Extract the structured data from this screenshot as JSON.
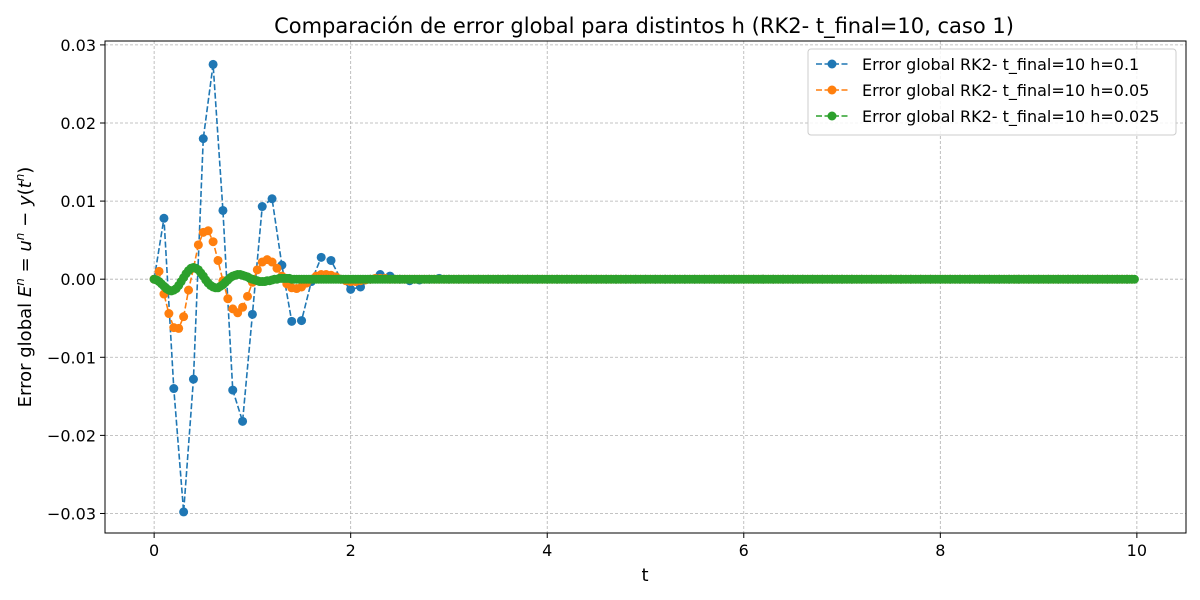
{
  "chart_data": {
    "type": "line",
    "title": "Comparación de error global para distintos h (RK2- t_final=10, caso 1)",
    "xlabel": "t",
    "ylabel": "Error global E^n = u^n − y(t^n)",
    "ylabel_parts": {
      "prefix": "Error global ",
      "E": "E",
      "n1": "n",
      "eq": " = ",
      "u": "u",
      "n2": "n",
      "minus": " − ",
      "y": "y",
      "open": "(",
      "t": "t",
      "n3": "n",
      "close": ")"
    },
    "xlim": [
      -0.5,
      10.5
    ],
    "ylim": [
      -0.0325,
      0.0305
    ],
    "xticks": [
      0,
      2,
      4,
      6,
      8,
      10
    ],
    "xtick_labels": [
      "0",
      "2",
      "4",
      "6",
      "8",
      "10"
    ],
    "yticks": [
      -0.03,
      -0.02,
      -0.01,
      0.0,
      0.01,
      0.02,
      0.03
    ],
    "ytick_labels": [
      "−0.03",
      "−0.02",
      "−0.01",
      "0.00",
      "0.01",
      "0.02",
      "0.03"
    ],
    "grid": true,
    "legend_position": "top-right",
    "series": [
      {
        "name": "Error global RK2- t_final=10 h=0.1",
        "color": "#1f77b4",
        "h": 0.1,
        "y_head": [
          0,
          0.0078,
          -0.014,
          -0.0298,
          -0.0128,
          0.018,
          0.0275,
          0.0088,
          -0.0142,
          -0.0182,
          -0.0045,
          0.0093,
          0.0103,
          0.0018,
          -0.0054,
          -0.0053,
          -0.0003,
          0.0028,
          0.0024,
          0.0,
          -0.0013,
          -0.001,
          0.0,
          0.0006,
          0.0004,
          0.0,
          -0.0002,
          -0.0001,
          0.0,
          0.0001,
          0.0,
          0.0
        ]
      },
      {
        "name": "Error global RK2- t_final=10 h=0.05",
        "color": "#ff7f0e",
        "h": 0.05,
        "y_head": [
          0,
          0.001,
          -0.0019,
          -0.0044,
          -0.0062,
          -0.0063,
          -0.0048,
          -0.0014,
          0.0014,
          0.0044,
          0.006,
          0.0062,
          0.0048,
          0.0024,
          -0.0002,
          -0.0025,
          -0.0038,
          -0.0043,
          -0.0036,
          -0.0022,
          -0.0004,
          0.0012,
          0.0022,
          0.0025,
          0.0022,
          0.0014,
          0.0004,
          -0.0006,
          -0.0011,
          -0.0012,
          -0.001,
          -0.0005,
          0.0,
          0.0004,
          0.0006,
          0.0006,
          0.0005,
          0.0003,
          0.0,
          -0.0002,
          -0.0003,
          -0.0003,
          -0.0002,
          -0.0001,
          0.0,
          0.0001,
          0.0001,
          0.0001,
          0.0,
          0.0,
          0.0
        ]
      },
      {
        "name": "Error global RK2- t_final=10 h=0.025",
        "color": "#2ca02c",
        "h": 0.025,
        "y_head": [
          0,
          -0.0001,
          -0.0003,
          -0.0006,
          -0.0009,
          -0.0012,
          -0.0014,
          -0.0015,
          -0.0014,
          -0.0012,
          -0.0008,
          -0.0003,
          0.0002,
          0.0007,
          0.0011,
          0.0014,
          0.0015,
          0.0014,
          0.0012,
          0.0008,
          0.0004,
          -0.0001,
          -0.0005,
          -0.0008,
          -0.001,
          -0.0011,
          -0.0011,
          -0.0009,
          -0.0007,
          -0.0004,
          -0.0001,
          0.0002,
          0.0004,
          0.0005,
          0.0006,
          0.0006,
          0.0005,
          0.0004,
          0.0003,
          0.0001,
          0.0,
          -0.0001,
          -0.0002,
          -0.0003,
          -0.0003,
          -0.0003,
          -0.0002,
          -0.0002,
          -0.0001,
          0.0,
          0.0,
          0.0001,
          0.0001,
          0.0001,
          0.0001,
          0.0001,
          0.0,
          0.0
        ]
      }
    ]
  }
}
